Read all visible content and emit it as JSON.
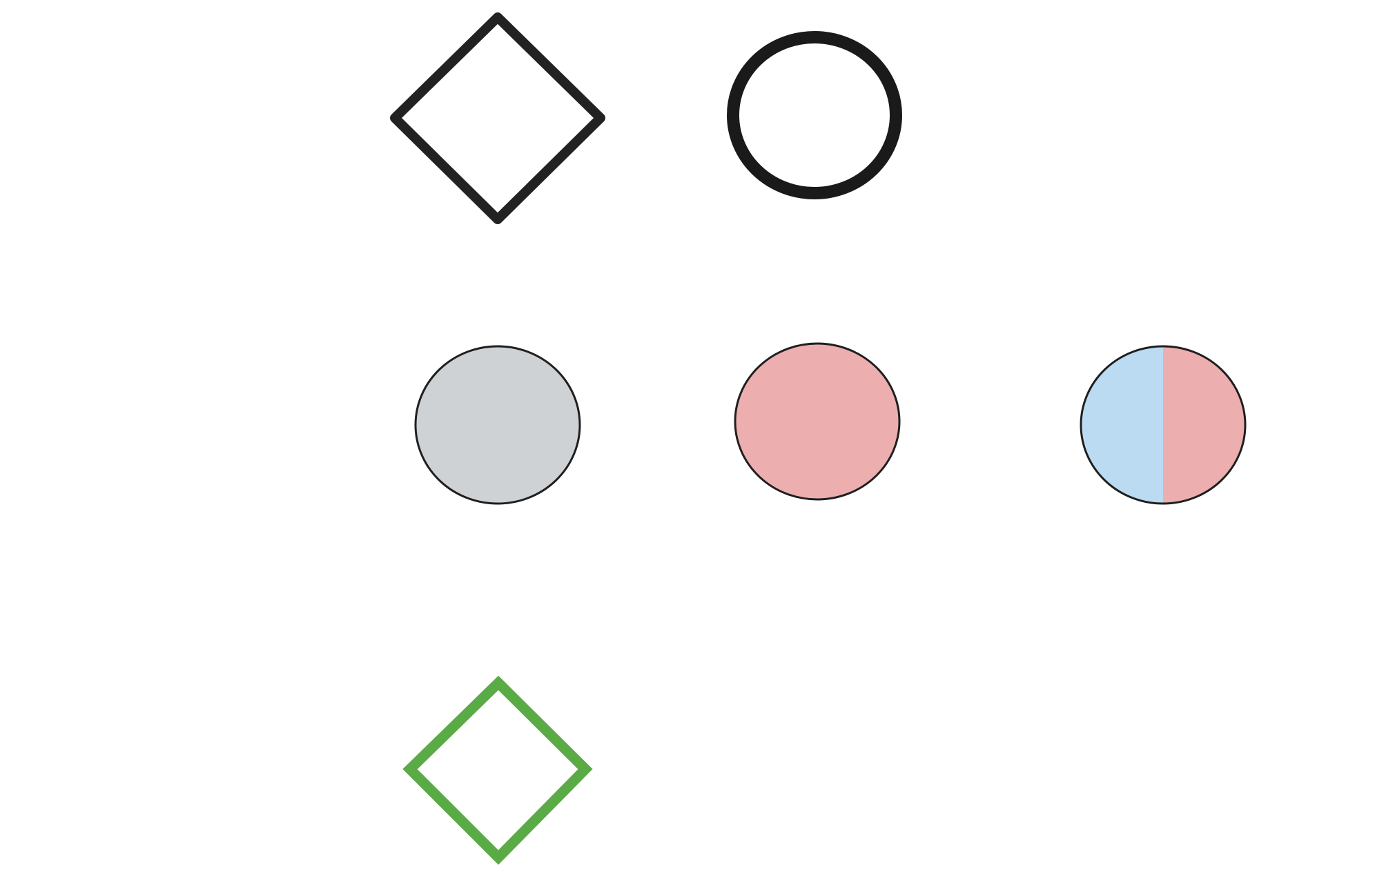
{
  "diagram": {
    "background": "#ffffff",
    "symbols": [
      {
        "id": "outline-diamond",
        "shape": "diamond",
        "icon": "diamond-outline-icon",
        "fill": "#ffffff",
        "stroke": "#222222"
      },
      {
        "id": "outline-circle",
        "shape": "circle",
        "icon": "circle-outline-icon",
        "fill": "#ffffff",
        "stroke": "#1a1a1a"
      },
      {
        "id": "gray-circle",
        "shape": "circle",
        "icon": "filled-circle-gray-icon",
        "fill": "#ced2d5",
        "stroke": "#1f1f1f"
      },
      {
        "id": "pink-circle",
        "shape": "circle",
        "icon": "filled-circle-pink-icon",
        "fill": "#ecaeae",
        "stroke": "#1f1f1f"
      },
      {
        "id": "half-blue-half-pink-circle",
        "shape": "split-circle",
        "icon": "half-filled-circle-icon",
        "fill_left": "#bbdbf2",
        "fill_right": "#ecaeae",
        "stroke": "#1f1f1f"
      },
      {
        "id": "green-diamond",
        "shape": "diamond",
        "icon": "diamond-outline-green-icon",
        "fill": "#ffffff",
        "stroke": "#5aab46"
      }
    ]
  }
}
